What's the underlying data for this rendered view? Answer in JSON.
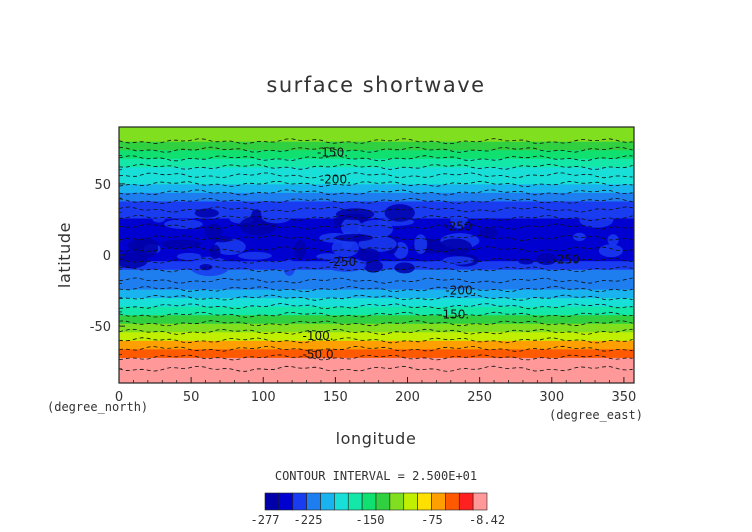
{
  "chart_data": {
    "type": "heatmap",
    "title": "surface shortwave",
    "xlabel": "longitude",
    "ylabel": "latitude",
    "x_unit": "(degree_east)",
    "y_unit": "(degree_north)",
    "xlim": [
      0,
      357
    ],
    "ylim": [
      -90,
      90
    ],
    "x_ticks": [
      0,
      50,
      100,
      150,
      200,
      250,
      300,
      350
    ],
    "y_ticks": [
      -50,
      0,
      50
    ],
    "contour_interval_text": "CONTOUR INTERVAL = 2.500E+01",
    "contour_labels": [
      {
        "text": "-150.",
        "lon": 148,
        "lat": 72
      },
      {
        "text": "-200.",
        "lon": 150,
        "lat": 53
      },
      {
        "text": "-250",
        "lon": 235,
        "lat": 20
      },
      {
        "text": "-250",
        "lon": 155,
        "lat": -5
      },
      {
        "text": "-250",
        "lon": 310,
        "lat": -3
      },
      {
        "text": "-200.",
        "lon": 237,
        "lat": -25
      },
      {
        "text": "-150.",
        "lon": 232,
        "lat": -42
      },
      {
        "text": "-100.",
        "lon": 138,
        "lat": -57
      },
      {
        "text": "-50.0",
        "lon": 138,
        "lat": -70
      }
    ],
    "latitude_profile": {
      "lat": [
        -90,
        -80,
        -72,
        -66,
        -60,
        -54,
        -48,
        -42,
        -36,
        -30,
        -24,
        -18,
        -10,
        -4,
        4,
        12,
        20,
        26,
        32,
        38,
        44,
        50,
        56,
        62,
        68,
        74,
        80,
        90
      ],
      "value": [
        -12,
        -15,
        -35,
        -58,
        -85,
        -105,
        -125,
        -150,
        -170,
        -190,
        -208,
        -222,
        -230,
        -240,
        -252,
        -262,
        -258,
        -246,
        -235,
        -225,
        -212,
        -200,
        -185,
        -172,
        -160,
        -145,
        -130,
        -115
      ]
    },
    "colorbar": {
      "min": -277,
      "max": -8.42,
      "tick_labels": [
        "-277",
        "-225",
        "-150",
        "-75",
        "-8.42"
      ],
      "colors": [
        "#0000aa",
        "#0000d0",
        "#1a3cf0",
        "#1e7ef0",
        "#19b3f0",
        "#18e0d8",
        "#14e8a8",
        "#10e070",
        "#30d040",
        "#80e020",
        "#c0f000",
        "#ffe000",
        "#ffa000",
        "#ff5a00",
        "#ff2020",
        "#ff9999"
      ]
    }
  }
}
